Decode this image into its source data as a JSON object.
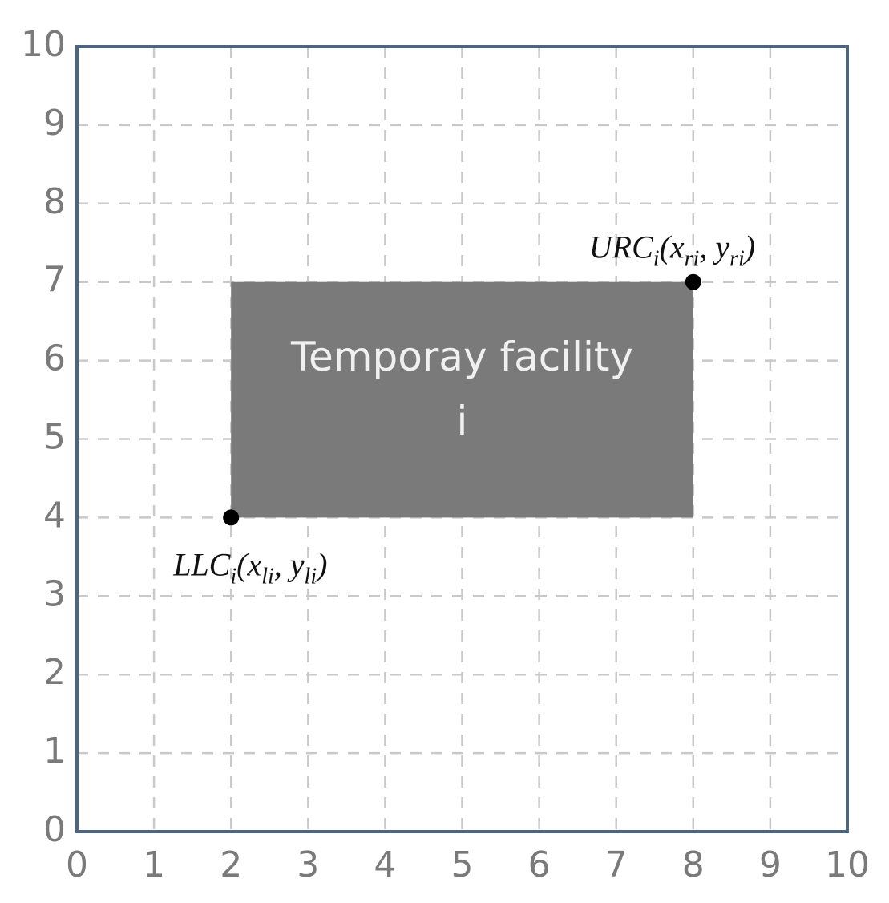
{
  "chart_data": {
    "type": "rect",
    "xlim": [
      0,
      10
    ],
    "ylim": [
      0,
      10
    ],
    "xticks": [
      0,
      1,
      2,
      3,
      4,
      5,
      6,
      7,
      8,
      9,
      10
    ],
    "yticks": [
      0,
      1,
      2,
      3,
      4,
      5,
      6,
      7,
      8,
      9,
      10
    ],
    "grid": true,
    "rect": {
      "x": [
        2,
        8
      ],
      "y": [
        4,
        7
      ],
      "color": "#7a7a7a",
      "label": [
        "Temporay facility",
        "i"
      ]
    },
    "points": [
      {
        "x": 2,
        "y": 4,
        "label": [
          "LLC",
          "i",
          "(x",
          "li",
          ", y",
          "li",
          ")"
        ]
      },
      {
        "x": 8,
        "y": 7,
        "label": [
          "URC",
          "i",
          "(x",
          "ri",
          ", y",
          "ri",
          ")"
        ]
      }
    ]
  }
}
